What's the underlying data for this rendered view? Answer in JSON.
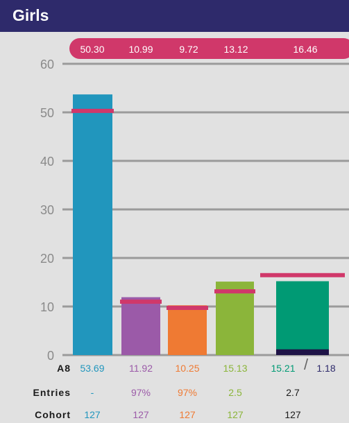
{
  "header": {
    "title": "Girls"
  },
  "chart_data": {
    "type": "bar",
    "categories": [
      "col1",
      "col2",
      "col3",
      "col4",
      "col5"
    ],
    "values": [
      53.69,
      11.92,
      10.25,
      15.13,
      15.21
    ],
    "stacked_extra": {
      "index": 4,
      "value": 1.18,
      "color": "#1e1346"
    },
    "colors": [
      "#2196bd",
      "#9b5aa8",
      "#ef7a33",
      "#8bb53a",
      "#009a74"
    ],
    "benchmarks": [
      50.3,
      10.99,
      9.72,
      13.12,
      16.46
    ],
    "benchmark_labels": [
      "50.30",
      "10.99",
      "9.72",
      "13.12",
      "16.46"
    ],
    "benchmark_color": "#d0386a",
    "yticks": [
      0,
      10,
      20,
      30,
      40,
      50,
      60
    ],
    "ylim": [
      0,
      60
    ],
    "grid": true
  },
  "table": {
    "rows": [
      {
        "label": "A8",
        "cells": [
          "53.69",
          "11.92",
          "10.25",
          "15.13",
          "15.21"
        ],
        "extra": "1.18",
        "slash": "/"
      },
      {
        "label": "Entries",
        "cells": [
          "-",
          "97%",
          "97%",
          "2.5",
          "2.7"
        ]
      },
      {
        "label": "Cohort",
        "cells": [
          "127",
          "127",
          "127",
          "127",
          "127"
        ]
      }
    ],
    "cell_colors": [
      "#2196bd",
      "#9b5aa8",
      "#ef7a33",
      "#8bb53a",
      "#009a74"
    ],
    "last_col_color": "#1a1a1a",
    "extra_color": "#2e2a6b"
  }
}
